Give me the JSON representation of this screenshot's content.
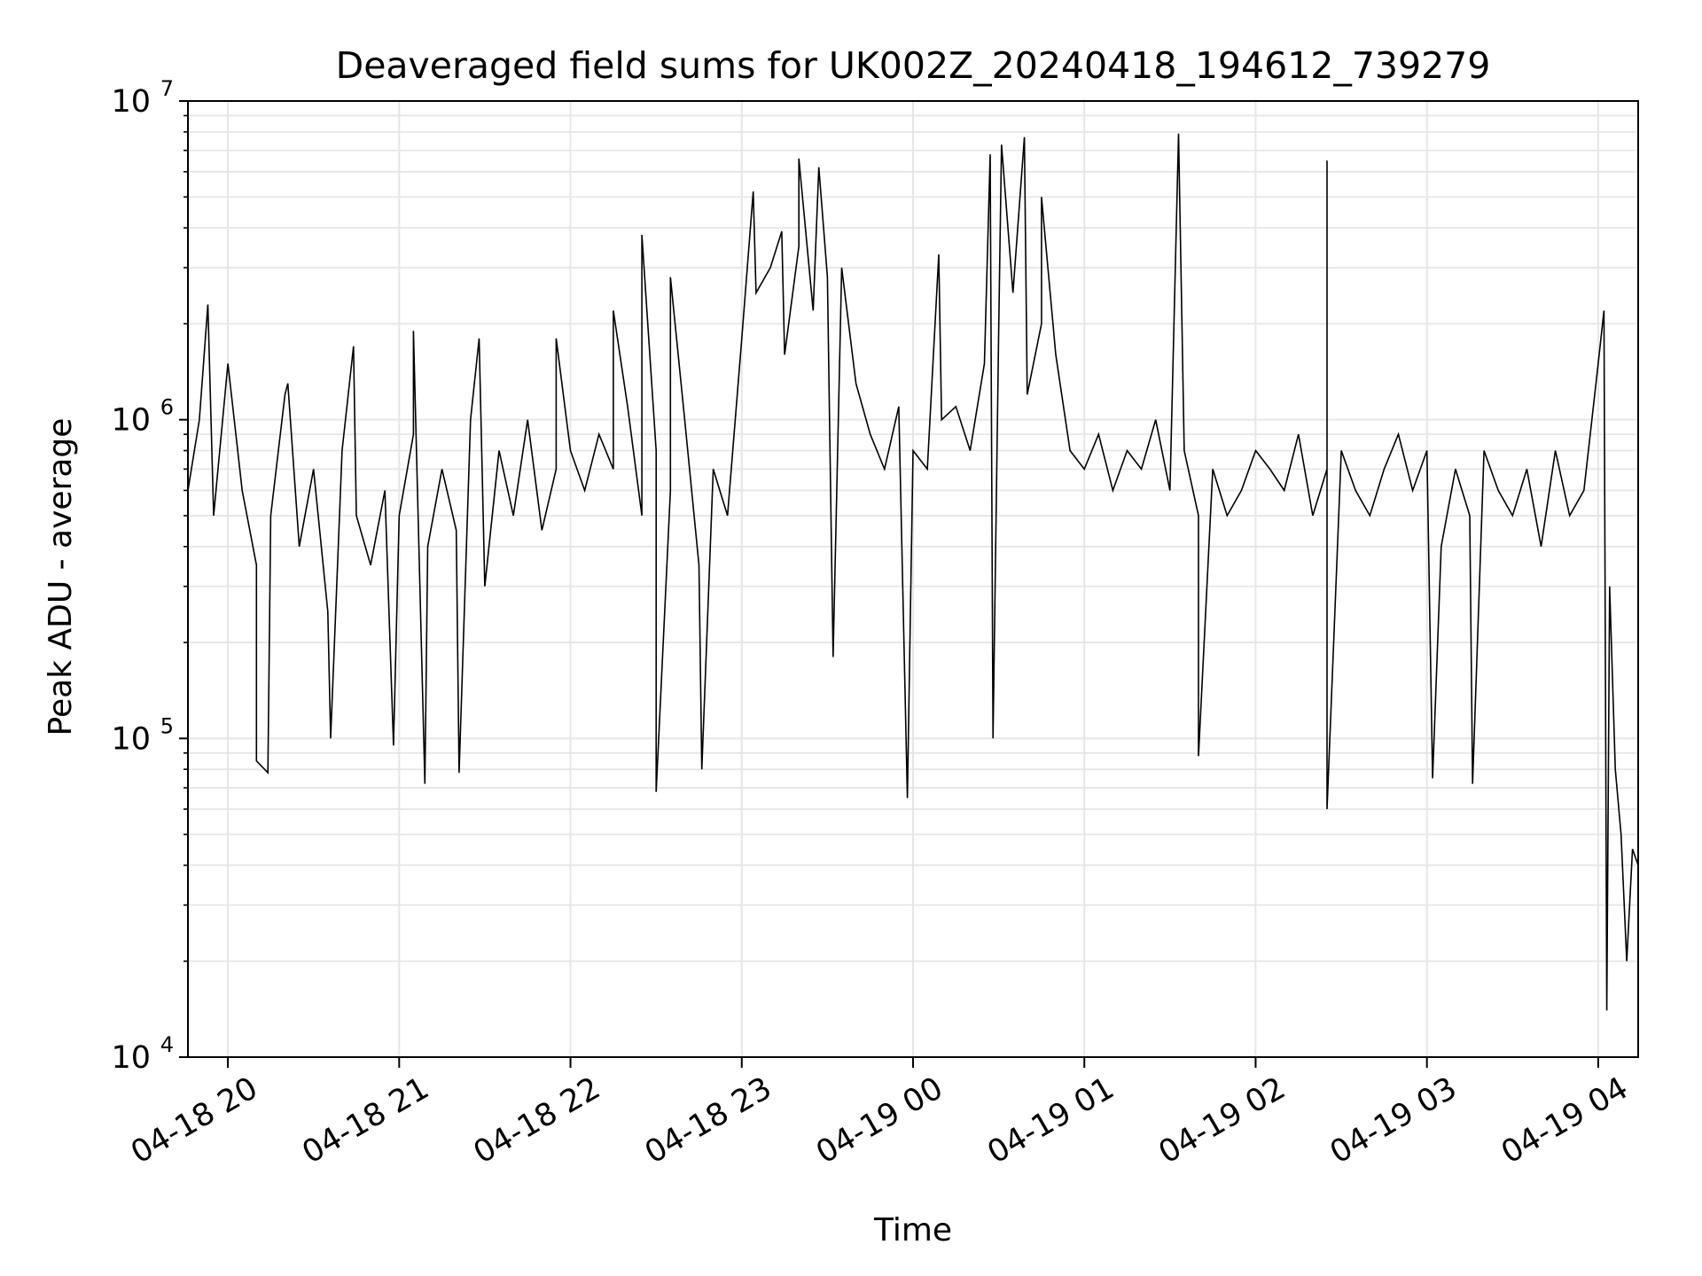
{
  "chart_data": {
    "type": "line",
    "title": "Deaveraged field sums for UK002Z_20240418_194612_739279",
    "xlabel": "Time",
    "ylabel": "Peak ADU - average",
    "yscale": "log",
    "ylim": [
      10000,
      10000000
    ],
    "xlim": [
      "2024-04-18 19:46",
      "2024-04-19 04:14"
    ],
    "grid": true,
    "colors": {
      "series": "#000000",
      "grid": "#e6e6e6",
      "axes": "#000000"
    },
    "x_ticks": [
      {
        "value": "2024-04-18 20:00",
        "label": "04-18 20"
      },
      {
        "value": "2024-04-18 21:00",
        "label": "04-18 21"
      },
      {
        "value": "2024-04-18 22:00",
        "label": "04-18 22"
      },
      {
        "value": "2024-04-18 23:00",
        "label": "04-18 23"
      },
      {
        "value": "2024-04-19 00:00",
        "label": "04-19 00"
      },
      {
        "value": "2024-04-19 01:00",
        "label": "04-19 01"
      },
      {
        "value": "2024-04-19 02:00",
        "label": "04-19 02"
      },
      {
        "value": "2024-04-19 03:00",
        "label": "04-19 03"
      },
      {
        "value": "2024-04-19 04:00",
        "label": "04-19 04"
      }
    ],
    "y_ticks": [
      {
        "value": 10000,
        "base": "10",
        "exp": "4"
      },
      {
        "value": 100000,
        "base": "10",
        "exp": "5"
      },
      {
        "value": 1000000,
        "base": "10",
        "exp": "6"
      },
      {
        "value": 10000000,
        "base": "10",
        "exp": "7"
      }
    ],
    "series": [
      {
        "x": [
          "2024-04-18 19:46",
          "2024-04-18 19:50",
          "2024-04-18 19:55",
          "2024-04-18 20:00",
          "2024-04-18 20:05",
          "2024-04-18 20:10",
          "2024-04-18 20:15",
          "2024-04-18 20:20",
          "2024-04-18 20:25",
          "2024-04-18 20:30",
          "2024-04-18 20:35",
          "2024-04-18 20:40",
          "2024-04-18 20:45",
          "2024-04-18 20:50",
          "2024-04-18 20:55",
          "2024-04-18 21:00",
          "2024-04-18 21:05",
          "2024-04-18 21:10",
          "2024-04-18 21:15",
          "2024-04-18 21:20",
          "2024-04-18 21:25",
          "2024-04-18 21:30",
          "2024-04-18 21:35",
          "2024-04-18 21:40",
          "2024-04-18 21:45",
          "2024-04-18 21:50",
          "2024-04-18 21:55",
          "2024-04-18 22:00",
          "2024-04-18 22:05",
          "2024-04-18 22:10",
          "2024-04-18 22:15",
          "2024-04-18 22:20",
          "2024-04-18 22:25",
          "2024-04-18 22:30",
          "2024-04-18 22:35",
          "2024-04-18 22:40",
          "2024-04-18 22:45",
          "2024-04-18 22:50",
          "2024-04-18 22:55",
          "2024-04-18 23:00",
          "2024-04-18 23:05",
          "2024-04-18 23:10",
          "2024-04-18 23:15",
          "2024-04-18 23:20",
          "2024-04-18 23:25",
          "2024-04-18 23:30",
          "2024-04-18 23:35",
          "2024-04-18 23:40",
          "2024-04-18 23:45",
          "2024-04-18 23:50",
          "2024-04-18 23:55",
          "2024-04-19 00:00",
          "2024-04-19 00:05",
          "2024-04-19 00:10",
          "2024-04-19 00:15",
          "2024-04-19 00:20",
          "2024-04-19 00:25",
          "2024-04-19 00:30",
          "2024-04-19 00:35",
          "2024-04-19 00:40",
          "2024-04-19 00:45",
          "2024-04-19 00:50",
          "2024-04-19 00:55",
          "2024-04-19 01:00",
          "2024-04-19 01:05",
          "2024-04-19 01:10",
          "2024-04-19 01:15",
          "2024-04-19 01:20",
          "2024-04-19 01:25",
          "2024-04-19 01:30",
          "2024-04-19 01:35",
          "2024-04-19 01:40",
          "2024-04-19 01:45",
          "2024-04-19 01:50",
          "2024-04-19 01:55",
          "2024-04-19 02:00",
          "2024-04-19 02:05",
          "2024-04-19 02:10",
          "2024-04-19 02:15",
          "2024-04-19 02:20",
          "2024-04-19 02:25",
          "2024-04-19 02:30",
          "2024-04-19 02:35",
          "2024-04-19 02:40",
          "2024-04-19 02:45",
          "2024-04-19 02:50",
          "2024-04-19 02:55",
          "2024-04-19 03:00",
          "2024-04-19 03:05",
          "2024-04-19 03:10",
          "2024-04-19 03:15",
          "2024-04-19 03:20",
          "2024-04-19 03:25",
          "2024-04-19 03:30",
          "2024-04-19 03:35",
          "2024-04-19 03:40",
          "2024-04-19 03:45",
          "2024-04-19 03:50",
          "2024-04-19 03:55",
          "2024-04-19 04:00",
          "2024-04-19 04:02",
          "2024-04-19 04:04",
          "2024-04-19 04:06",
          "2024-04-19 04:08",
          "2024-04-19 04:10",
          "2024-04-19 04:12",
          "2024-04-19 04:14"
        ],
        "y": [
          600000,
          1000000,
          500000,
          1500000,
          600000,
          350000,
          500000,
          1200000,
          400000,
          700000,
          250000,
          800000,
          500000,
          350000,
          600000,
          500000,
          900000,
          400000,
          700000,
          450000,
          1000000,
          300000,
          800000,
          500000,
          1000000,
          450000,
          700000,
          800000,
          600000,
          900000,
          700000,
          1100000,
          500000,
          800000,
          600000,
          1000000,
          350000,
          700000,
          500000,
          1800000,
          2500000,
          3000000,
          1600000,
          3500000,
          2200000,
          2800000,
          3000000,
          1300000,
          900000,
          700000,
          1100000,
          800000,
          700000,
          1000000,
          1100000,
          800000,
          1500000,
          1900000,
          2500000,
          1200000,
          2000000,
          1600000,
          800000,
          700000,
          900000,
          600000,
          800000,
          700000,
          1000000,
          600000,
          800000,
          500000,
          700000,
          500000,
          600000,
          800000,
          700000,
          600000,
          900000,
          500000,
          700000,
          800000,
          600000,
          500000,
          700000,
          900000,
          600000,
          800000,
          400000,
          700000,
          500000,
          800000,
          600000,
          500000,
          700000,
          400000,
          800000,
          500000,
          600000,
          1500000,
          2200000,
          300000,
          80000,
          50000,
          20000,
          45000,
          40000
        ]
      }
    ],
    "spikes": [
      {
        "x": "2024-04-18 19:53",
        "y": 2300000
      },
      {
        "x": "2024-04-18 20:10",
        "y": 85000
      },
      {
        "x": "2024-04-18 20:14",
        "y": 78000
      },
      {
        "x": "2024-04-18 20:21",
        "y": 1300000
      },
      {
        "x": "2024-04-18 20:36",
        "y": 100000
      },
      {
        "x": "2024-04-18 20:44",
        "y": 1700000
      },
      {
        "x": "2024-04-18 20:58",
        "y": 95000
      },
      {
        "x": "2024-04-18 21:05",
        "y": 1900000
      },
      {
        "x": "2024-04-18 21:09",
        "y": 72000
      },
      {
        "x": "2024-04-18 21:21",
        "y": 78000
      },
      {
        "x": "2024-04-18 21:28",
        "y": 1800000
      },
      {
        "x": "2024-04-18 21:55",
        "y": 1800000
      },
      {
        "x": "2024-04-18 22:15",
        "y": 2200000
      },
      {
        "x": "2024-04-18 22:25",
        "y": 3800000
      },
      {
        "x": "2024-04-18 22:30",
        "y": 68000
      },
      {
        "x": "2024-04-18 22:35",
        "y": 2800000
      },
      {
        "x": "2024-04-18 22:46",
        "y": 80000
      },
      {
        "x": "2024-04-18 23:04",
        "y": 5200000
      },
      {
        "x": "2024-04-18 23:14",
        "y": 3900000
      },
      {
        "x": "2024-04-18 23:20",
        "y": 6600000
      },
      {
        "x": "2024-04-18 23:27",
        "y": 6200000
      },
      {
        "x": "2024-04-18 23:32",
        "y": 180000
      },
      {
        "x": "2024-04-18 23:58",
        "y": 65000
      },
      {
        "x": "2024-04-19 00:09",
        "y": 3300000
      },
      {
        "x": "2024-04-19 00:27",
        "y": 6800000
      },
      {
        "x": "2024-04-19 00:28",
        "y": 100000
      },
      {
        "x": "2024-04-19 00:31",
        "y": 7300000
      },
      {
        "x": "2024-04-19 00:39",
        "y": 7700000
      },
      {
        "x": "2024-04-19 00:45",
        "y": 5000000
      },
      {
        "x": "2024-04-19 01:33",
        "y": 7900000
      },
      {
        "x": "2024-04-19 01:40",
        "y": 88000
      },
      {
        "x": "2024-04-19 02:25",
        "y": 6500000
      },
      {
        "x": "2024-04-19 02:25",
        "y": 60000
      },
      {
        "x": "2024-04-19 03:02",
        "y": 75000
      },
      {
        "x": "2024-04-19 03:16",
        "y": 72000
      },
      {
        "x": "2024-04-19 04:03",
        "y": 14000
      }
    ]
  }
}
